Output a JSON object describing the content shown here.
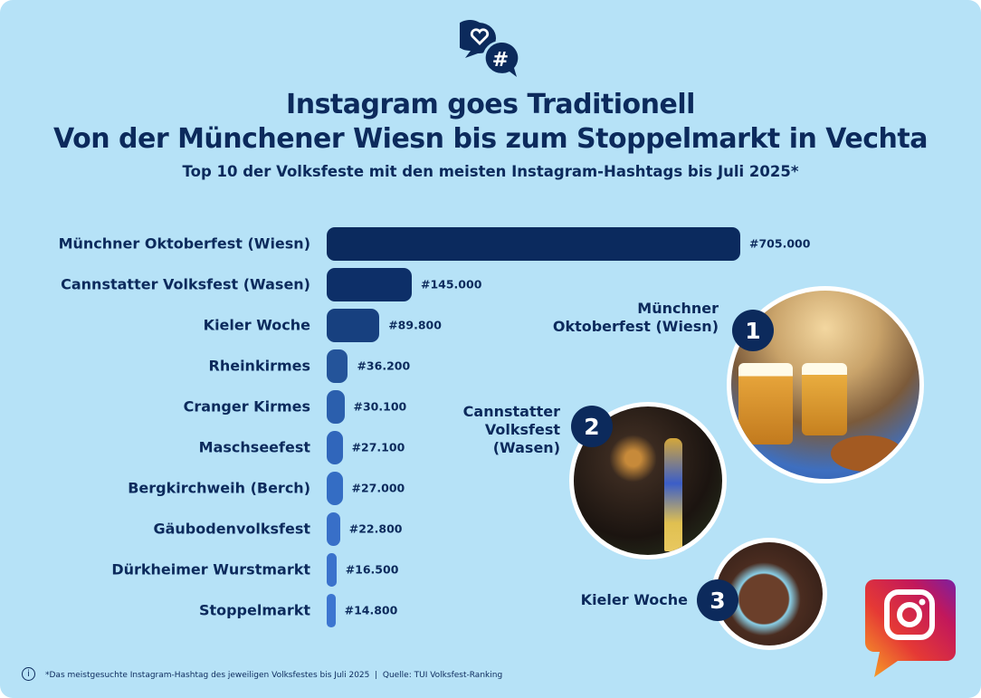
{
  "header": {
    "title_line1": "Instagram goes Traditionell",
    "title_line2": "Von der Münchener Wiesn bis zum Stoppelmarkt in Vechta",
    "subtitle": "Top 10 der Volksfeste mit den meisten Instagram-Hashtags bis Juli 2025*",
    "icon": "chat-bubbles-heart-hashtag-icon"
  },
  "chart_data": {
    "type": "bar",
    "orientation": "horizontal",
    "title": "Top 10 der Volksfeste mit den meisten Instagram-Hashtags bis Juli 2025*",
    "categories": [
      "Münchner Oktoberfest (Wiesn)",
      "Cannstatter Volksfest (Wasen)",
      "Kieler Woche",
      "Rheinkirmes",
      "Cranger Kirmes",
      "Maschseefest",
      "Bergkirchweih (Berch)",
      "Gäubodenvolksfest",
      "Dürkheimer Wurstmarkt",
      "Stoppelmarkt"
    ],
    "values": [
      705000,
      145000,
      89800,
      36200,
      30100,
      27100,
      27000,
      22800,
      16500,
      14800
    ],
    "data_labels": [
      "#705.000",
      "#145.000",
      "#89.800",
      "#36.200",
      "#30.100",
      "#27.100",
      "#27.000",
      "#22.800",
      "#16.500",
      "#14.800"
    ],
    "colors": [
      "#0b2a5e",
      "#0d2f68",
      "#17407f",
      "#24549a",
      "#2b5fad",
      "#3066bb",
      "#346dc4",
      "#386fc8",
      "#3a72cc",
      "#3c75d0"
    ],
    "grid": false,
    "legend": "none"
  },
  "highlights": [
    {
      "rank": "1",
      "name": "Münchner Oktoberfest (Wiesn)",
      "line1": "Münchner",
      "line2": "Oktoberfest (Wiesn)"
    },
    {
      "rank": "2",
      "name": "Cannstatter Volksfest (Wasen)",
      "line1": "Cannstatter",
      "line2": "Volksfest",
      "line3": "(Wasen)"
    },
    {
      "rank": "3",
      "name": "Kieler Woche",
      "line1": "Kieler Woche"
    }
  ],
  "footer": {
    "note": "*Das meistgesuchte Instagram-Hashtag des jeweiligen Volksfestes bis Juli 2025  |  Quelle: TUI Volksfest-Ranking",
    "info_icon": "i"
  },
  "logo": "instagram-logo",
  "colors": {
    "background": "#b6e2f7",
    "navy": "#0c2a5c"
  }
}
